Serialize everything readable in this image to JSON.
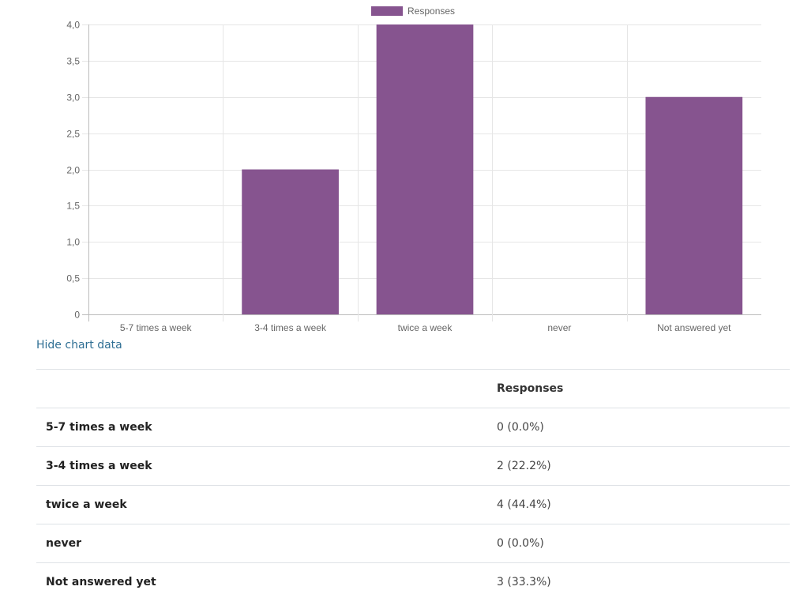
{
  "chart_data": {
    "type": "bar",
    "categories": [
      "5-7 times a week",
      "3-4 times a week",
      "twice a week",
      "never",
      "Not answered yet"
    ],
    "series": [
      {
        "name": "Responses",
        "values": [
          0,
          2,
          4,
          0,
          3
        ]
      }
    ],
    "ylim": [
      0,
      4
    ],
    "yticks": [
      "0",
      "0,5",
      "1,0",
      "1,5",
      "2,0",
      "2,5",
      "3,0",
      "3,5",
      "4,0"
    ],
    "ytick_values": [
      0,
      0.5,
      1,
      1.5,
      2,
      2.5,
      3,
      3.5,
      4
    ],
    "legend_position": "top",
    "grid": true,
    "bar_color": "#86548f"
  },
  "toggle": {
    "label": "Hide chart data"
  },
  "table": {
    "header_corner": "",
    "header_value": "Responses",
    "rows": [
      {
        "label": "5-7 times a week",
        "value": "0 (0.0%)"
      },
      {
        "label": "3-4 times a week",
        "value": "2 (22.2%)"
      },
      {
        "label": "twice a week",
        "value": "4 (44.4%)"
      },
      {
        "label": "never",
        "value": "0 (0.0%)"
      },
      {
        "label": "Not answered yet",
        "value": "3 (33.3%)"
      }
    ]
  }
}
